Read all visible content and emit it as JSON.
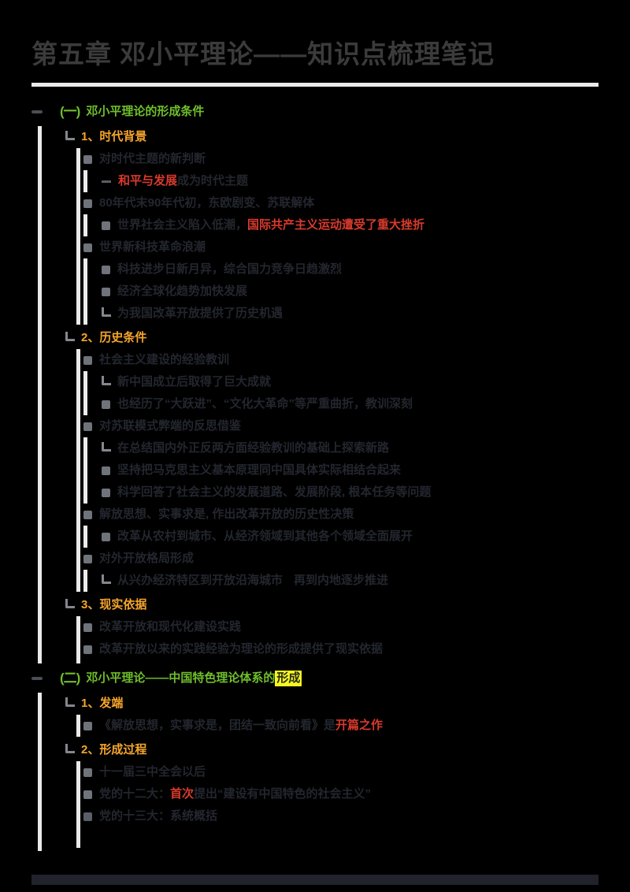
{
  "title": "第五章 邓小平理论——知识点梳理笔记",
  "colors": {
    "background": "#000000",
    "title_text": "#3b3b3b",
    "body_text": "#23262e",
    "section_green": "#6fbe2b",
    "number_orange": "#f6a52c",
    "emphasis_red": "#d93a2c",
    "highlight_yellow": "#f7f720",
    "guide_line": "#eaeaea",
    "bullet_gray": "#6f737a"
  },
  "icons": {
    "toggle": "collapse-dash",
    "section_badge_1": "(一)",
    "section_badge_2": "(二)",
    "bullet": "square-bullet",
    "child": "elbow-arrow"
  },
  "rows": {
    "r1": {
      "badge": "(一)",
      "s0": "邓小平理论的形成条件"
    },
    "r2": {
      "s0": "1、时代背景"
    },
    "r3": {
      "s0": "对时代主题的新判断"
    },
    "r4": {
      "s0": "和平与发展",
      "s1": "成为时代主题"
    },
    "r5": {
      "s0": "80年代末90年代初，东欧剧变、苏联解体"
    },
    "r6": {
      "s0": "世界社会主义陷入低潮，",
      "s1": "国际共产主义运动遭受了重大挫折"
    },
    "r7": {
      "s0": "世界新科技革命浪潮"
    },
    "r8": {
      "s0": "科技进步日新月异，综合国力竞争日趋激烈"
    },
    "r9": {
      "s0": "经济全球化趋势加快发展"
    },
    "r10": {
      "s0": "为我国改革开放提供了历史机遇"
    },
    "r11": {
      "s0": "2、历史条件"
    },
    "r12": {
      "s0": "社会主义建设的经验教训"
    },
    "r13": {
      "s0": "新中国成立后取得了巨大成就"
    },
    "r14": {
      "s0": "也经历了“大跃进”、“文化大革命”等严重曲折，教训深刻"
    },
    "r15": {
      "s0": "对苏联模式弊端的反思借鉴"
    },
    "r16": {
      "s0": "在总结国内外正反两方面经验教训的基础上探索新路"
    },
    "r17": {
      "s0": "坚持把马克思主义基本原理同中国具体实际相结合起来"
    },
    "r18": {
      "s0": "科学回答了社会主义的发展道路、发展阶段, 根本任务等问题"
    },
    "r19": {
      "s0": "解放思想、实事求是, 作出改革开放的历史性决策"
    },
    "r20": {
      "s0": "改革从农村到城市、从经济领域到其他各个领域全面展开"
    },
    "r21": {
      "s0": "对外开放格局形成"
    },
    "r22": {
      "s0": "从兴办经济特区到开放沿海城市",
      "s1": "再到内地逐步推进"
    },
    "r23": {
      "s0": "3、现实依据"
    },
    "r24": {
      "s0": "改革开放和现代化建设实践"
    },
    "r25": {
      "s0": "改革开放以来的实践经验为理论的形成提供了现实依据"
    },
    "r26": {
      "badge": "(二)",
      "s0": "邓小平理论——中国特色理论体系的",
      "s1": "形成"
    },
    "r27": {
      "s0": "1、发端"
    },
    "r28": {
      "s0": "《解放思想，实事求是，团结一致向前看》是",
      "s1": "开篇之作"
    },
    "r29": {
      "s0": "2、形成过程"
    },
    "r30": {
      "s0": "十一届三中全会以后"
    },
    "r31": {
      "s0": "党的十二大：",
      "s1": "首次",
      "s2": "提出“建设有中国特色的社会主义”"
    },
    "r32": {
      "s0": "党的十三大：系统概括"
    }
  }
}
